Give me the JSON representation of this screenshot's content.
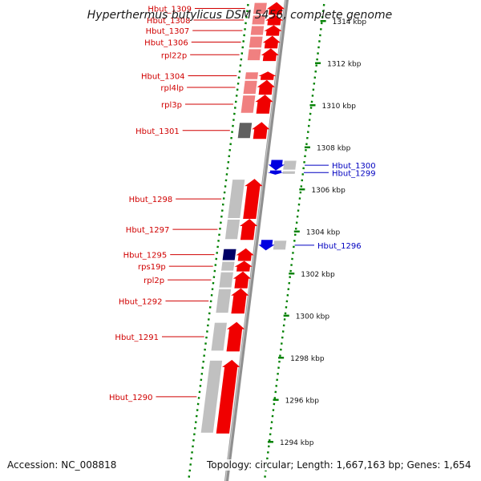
{
  "title": "Hyperthermus butylicus DSM 5456, complete genome",
  "footer": {
    "accession": "Accession: NC_008818",
    "summary": "Topology: circular; Length: 1,667,163 bp; Genes: 1,654"
  },
  "colors": {
    "forward": "#f00000",
    "forward_light": "#f08080",
    "reverse": "#0000e0",
    "grey": "#c0c0c0",
    "dark_grey": "#606060",
    "dark_blue": "#000066",
    "axis": "#909090",
    "dots": "#008000"
  },
  "scale": {
    "unit": "kbp",
    "ticks": [
      {
        "kbp": 1314,
        "label": "1314 kbp"
      },
      {
        "kbp": 1312,
        "label": "1312 kbp"
      },
      {
        "kbp": 1310,
        "label": "1310 kbp"
      },
      {
        "kbp": 1308,
        "label": "1308 kbp"
      },
      {
        "kbp": 1306,
        "label": "1306 kbp"
      },
      {
        "kbp": 1304,
        "label": "1304 kbp"
      },
      {
        "kbp": 1302,
        "label": "1302 kbp"
      },
      {
        "kbp": 1300,
        "label": "1300 kbp"
      },
      {
        "kbp": 1298,
        "label": "1298 kbp"
      },
      {
        "kbp": 1296,
        "label": "1296 kbp"
      },
      {
        "kbp": 1294,
        "label": "1294 kbp"
      }
    ]
  },
  "genes": [
    {
      "name": "Hbut_1309",
      "strand": "+",
      "start": 1314.9,
      "end": 1314.3
    },
    {
      "name": "Hbut_1308",
      "strand": "+",
      "start": 1314.3,
      "end": 1313.8
    },
    {
      "name": "Hbut_1307",
      "strand": "+",
      "start": 1313.8,
      "end": 1313.3
    },
    {
      "name": "Hbut_1306",
      "strand": "+",
      "start": 1313.3,
      "end": 1312.7
    },
    {
      "name": "rpl22p",
      "strand": "+",
      "start": 1312.7,
      "end": 1312.1
    },
    {
      "name": "Hbut_1304",
      "strand": "+",
      "start": 1311.6,
      "end": 1311.2
    },
    {
      "name": "rpl4lp",
      "strand": "+",
      "start": 1311.2,
      "end": 1310.5
    },
    {
      "name": "rpl3p",
      "strand": "+",
      "start": 1310.5,
      "end": 1309.6
    },
    {
      "name": "Hbut_1301",
      "strand": "+",
      "start": 1309.2,
      "end": 1308.4
    },
    {
      "name": "Hbut_1300",
      "strand": "-",
      "start": 1307.4,
      "end": 1306.9
    },
    {
      "name": "Hbut_1299",
      "strand": "-",
      "start": 1306.9,
      "end": 1306.7
    },
    {
      "name": "Hbut_1298",
      "strand": "+",
      "start": 1306.5,
      "end": 1304.6
    },
    {
      "name": "Hbut_1297",
      "strand": "+",
      "start": 1304.6,
      "end": 1303.6
    },
    {
      "name": "Hbut_1296",
      "strand": "-",
      "start": 1303.6,
      "end": 1303.1
    },
    {
      "name": "Hbut_1295",
      "strand": "+",
      "start": 1303.2,
      "end": 1302.6
    },
    {
      "name": "rps19p",
      "strand": "+",
      "start": 1302.6,
      "end": 1302.1
    },
    {
      "name": "rpl2p",
      "strand": "+",
      "start": 1302.1,
      "end": 1301.3
    },
    {
      "name": "Hbut_1292",
      "strand": "+",
      "start": 1301.3,
      "end": 1300.1
    },
    {
      "name": "Hbut_1291",
      "strand": "+",
      "start": 1299.7,
      "end": 1298.3
    },
    {
      "name": "Hbut_1290",
      "strand": "+",
      "start": 1297.9,
      "end": 1294.4
    }
  ]
}
